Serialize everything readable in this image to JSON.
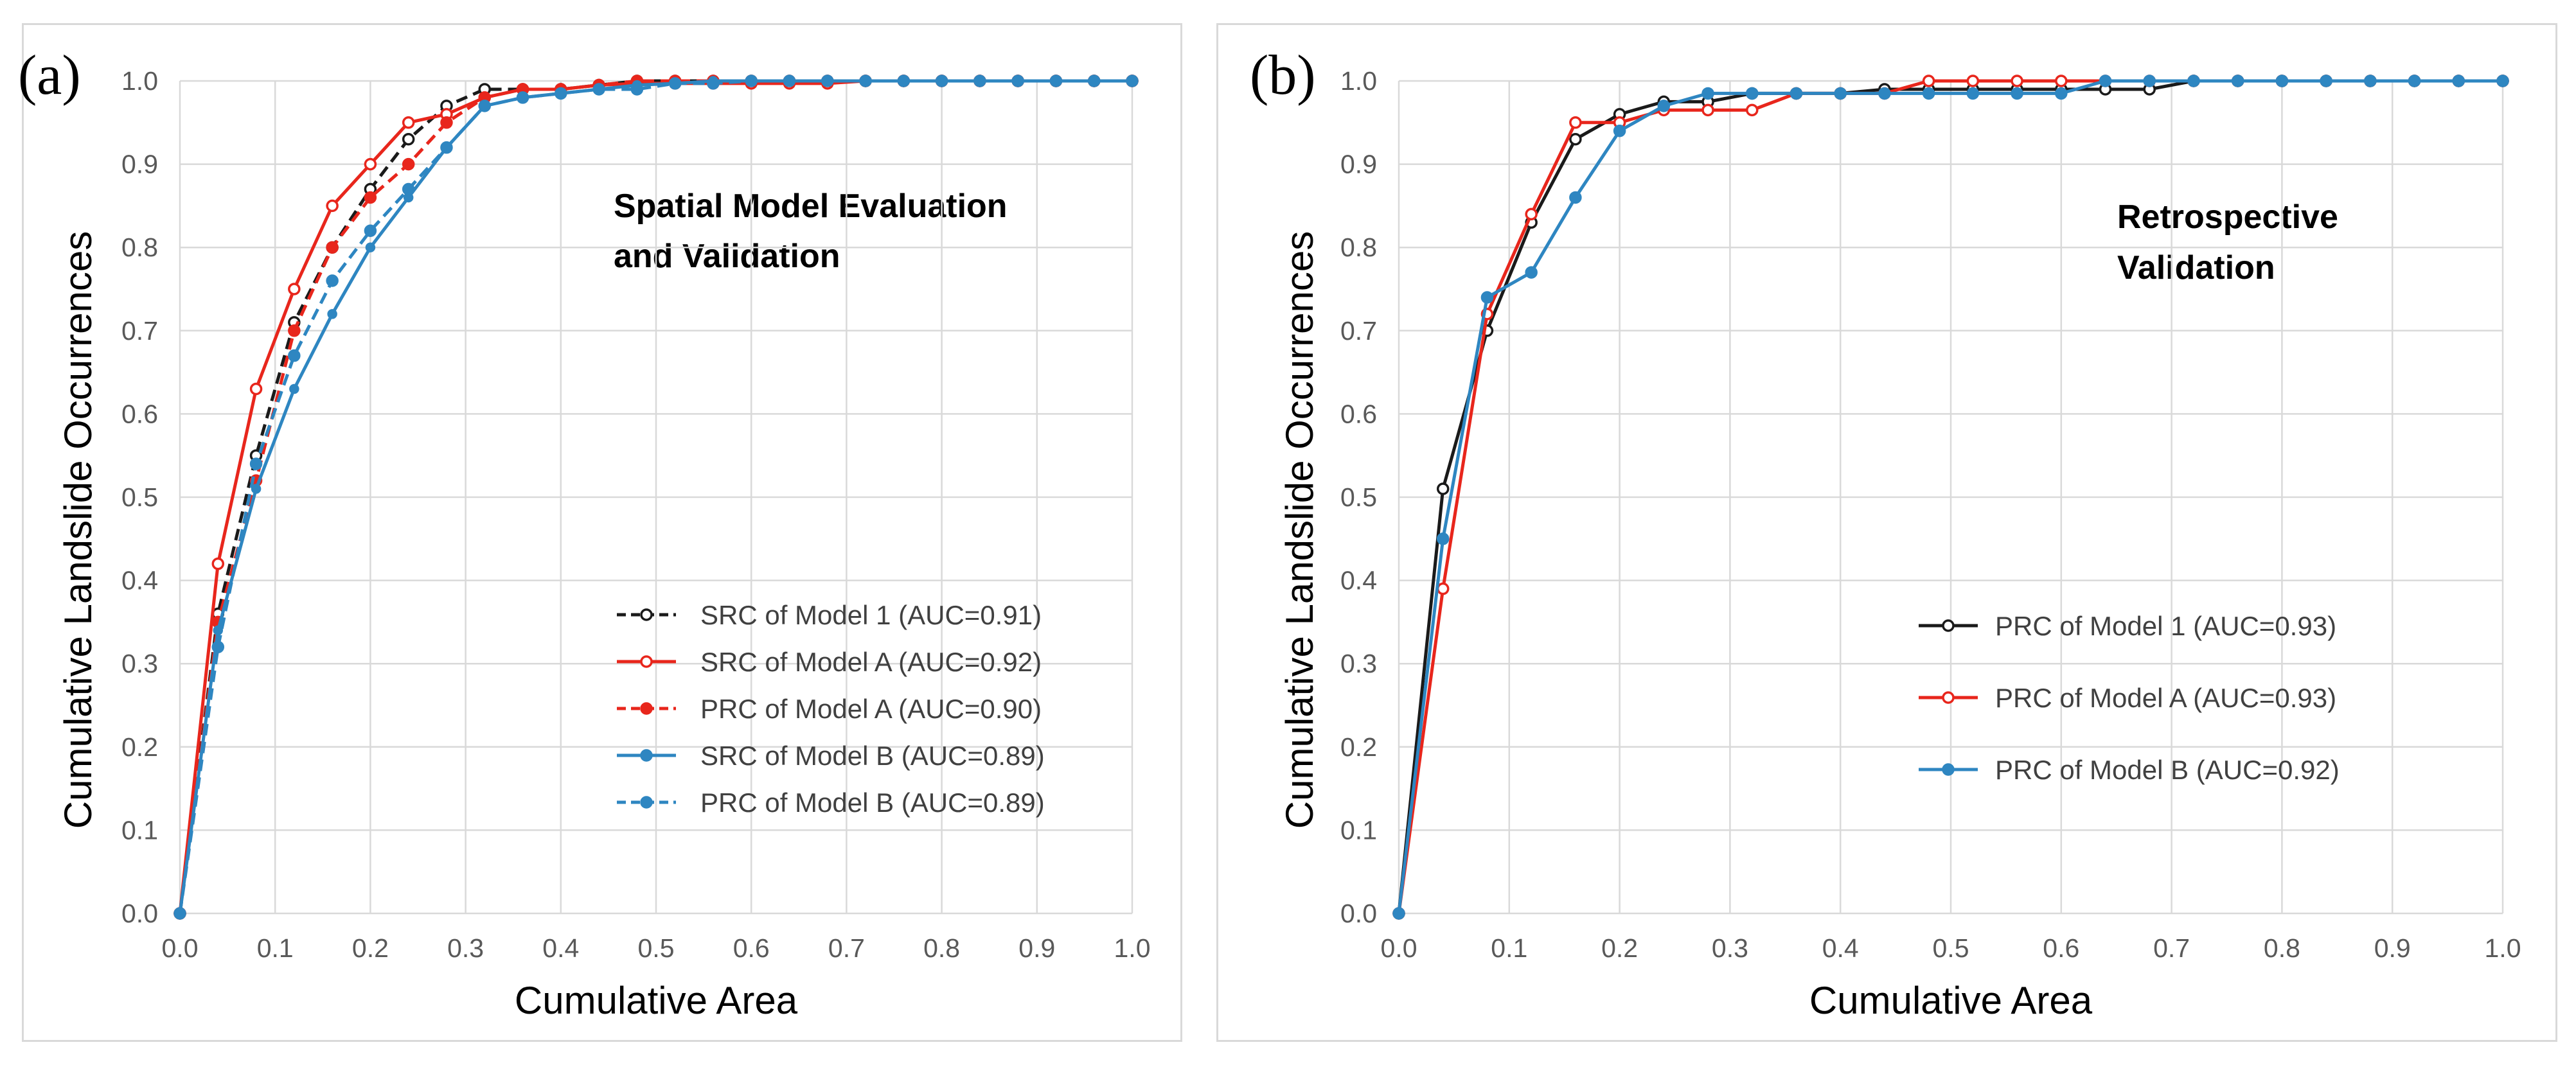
{
  "chart_data": [
    {
      "type": "line",
      "panel_label": "(a)",
      "title": "",
      "annotation": [
        "Spatial Model Evaluation",
        "and Validation"
      ],
      "xlabel": "Cumulative Area",
      "ylabel": "Cumulative Landslide Occurrences",
      "xlim": [
        0,
        1
      ],
      "ylim": [
        0,
        1
      ],
      "xticks": [
        "0.0",
        "0.1",
        "0.2",
        "0.3",
        "0.4",
        "0.5",
        "0.6",
        "0.7",
        "0.8",
        "0.9",
        "1.0"
      ],
      "yticks": [
        "0.0",
        "0.1",
        "0.2",
        "0.3",
        "0.4",
        "0.5",
        "0.6",
        "0.7",
        "0.8",
        "0.9",
        "1.0"
      ],
      "grid": true,
      "legend_position": "bottom-right",
      "series": [
        {
          "name": "SRC of Model 1 (AUC=0.91)",
          "color": "#1a1a1a",
          "dash": "dashed",
          "marker": "open",
          "x": [
            0,
            0.04,
            0.08,
            0.12,
            0.16,
            0.2,
            0.24,
            0.28,
            0.32,
            0.36,
            0.4,
            0.44,
            0.48,
            0.52,
            0.56,
            0.6,
            0.64,
            0.68,
            0.72,
            0.76,
            0.8,
            0.84,
            0.88,
            0.92,
            0.96,
            1.0
          ],
          "y": [
            0,
            0.36,
            0.55,
            0.71,
            0.8,
            0.87,
            0.93,
            0.97,
            0.99,
            0.99,
            0.99,
            0.995,
            1.0,
            1.0,
            1.0,
            1.0,
            1.0,
            1.0,
            1.0,
            1.0,
            1.0,
            1.0,
            1.0,
            1.0,
            1.0,
            1.0
          ]
        },
        {
          "name": "SRC of Model A (AUC=0.92)",
          "color": "#e8261c",
          "dash": "solid",
          "marker": "open",
          "x": [
            0,
            0.04,
            0.08,
            0.12,
            0.16,
            0.2,
            0.24,
            0.28,
            0.32,
            0.36,
            0.4,
            0.44,
            0.48,
            0.52,
            0.56,
            0.6,
            0.64,
            0.68,
            0.72,
            0.76,
            0.8,
            0.84,
            0.88,
            0.92,
            0.96,
            1.0
          ],
          "y": [
            0,
            0.42,
            0.63,
            0.75,
            0.85,
            0.9,
            0.95,
            0.96,
            0.98,
            0.99,
            0.99,
            0.995,
            0.997,
            0.997,
            0.997,
            0.997,
            0.997,
            0.997,
            1.0,
            1.0,
            1.0,
            1.0,
            1.0,
            1.0,
            1.0,
            1.0
          ]
        },
        {
          "name": "PRC of Model A (AUC=0.90)",
          "color": "#e8261c",
          "dash": "dashed",
          "marker": "filled",
          "x": [
            0,
            0.04,
            0.08,
            0.12,
            0.16,
            0.2,
            0.24,
            0.28,
            0.32,
            0.36,
            0.4,
            0.44,
            0.48,
            0.52,
            0.56,
            0.6,
            0.64,
            0.68,
            0.72,
            0.76,
            0.8,
            0.84,
            0.88,
            0.92,
            0.96,
            1.0
          ],
          "y": [
            0,
            0.35,
            0.52,
            0.7,
            0.8,
            0.86,
            0.9,
            0.95,
            0.98,
            0.99,
            0.99,
            0.995,
            1.0,
            1.0,
            1.0,
            1.0,
            1.0,
            1.0,
            1.0,
            1.0,
            1.0,
            1.0,
            1.0,
            1.0,
            1.0,
            1.0
          ]
        },
        {
          "name": "SRC of Model B (AUC=0.89)",
          "color": "#2e86c1",
          "dash": "solid",
          "marker": "small",
          "x": [
            0,
            0.04,
            0.08,
            0.12,
            0.16,
            0.2,
            0.24,
            0.28,
            0.32,
            0.36,
            0.4,
            0.44,
            0.48,
            0.52,
            0.56,
            0.6,
            0.64,
            0.68,
            0.72,
            0.76,
            0.8,
            0.84,
            0.88,
            0.92,
            0.96,
            1.0
          ],
          "y": [
            0,
            0.34,
            0.51,
            0.63,
            0.72,
            0.8,
            0.86,
            0.92,
            0.97,
            0.98,
            0.985,
            0.99,
            0.995,
            0.997,
            1.0,
            1.0,
            1.0,
            1.0,
            1.0,
            1.0,
            1.0,
            1.0,
            1.0,
            1.0,
            1.0,
            1.0
          ]
        },
        {
          "name": "PRC of Model B (AUC=0.89)",
          "color": "#2e86c1",
          "dash": "dashed",
          "marker": "filled",
          "x": [
            0,
            0.04,
            0.08,
            0.12,
            0.16,
            0.2,
            0.24,
            0.28,
            0.32,
            0.36,
            0.4,
            0.44,
            0.48,
            0.52,
            0.56,
            0.6,
            0.64,
            0.68,
            0.72,
            0.76,
            0.8,
            0.84,
            0.88,
            0.92,
            0.96,
            1.0
          ],
          "y": [
            0,
            0.32,
            0.54,
            0.67,
            0.76,
            0.82,
            0.87,
            0.92,
            0.97,
            0.98,
            0.985,
            0.99,
            0.99,
            0.997,
            0.997,
            1.0,
            1.0,
            1.0,
            1.0,
            1.0,
            1.0,
            1.0,
            1.0,
            1.0,
            1.0,
            1.0
          ]
        }
      ]
    },
    {
      "type": "line",
      "panel_label": "(b)",
      "title": "",
      "annotation": [
        "Retrospective",
        "Validation"
      ],
      "xlabel": "Cumulative Area",
      "ylabel": "Cumulative Landslide Occurrences",
      "xlim": [
        0,
        1
      ],
      "ylim": [
        0,
        1
      ],
      "xticks": [
        "0.0",
        "0.1",
        "0.2",
        "0.3",
        "0.4",
        "0.5",
        "0.6",
        "0.7",
        "0.8",
        "0.9",
        "1.0"
      ],
      "yticks": [
        "0.0",
        "0.1",
        "0.2",
        "0.3",
        "0.4",
        "0.5",
        "0.6",
        "0.7",
        "0.8",
        "0.9",
        "1.0"
      ],
      "grid": true,
      "legend_position": "bottom-right",
      "series": [
        {
          "name": "PRC of Model 1 (AUC=0.93)",
          "color": "#1a1a1a",
          "dash": "solid",
          "marker": "open",
          "x": [
            0,
            0.04,
            0.08,
            0.12,
            0.16,
            0.2,
            0.24,
            0.28,
            0.32,
            0.36,
            0.4,
            0.44,
            0.48,
            0.52,
            0.56,
            0.6,
            0.64,
            0.68,
            0.72,
            0.76,
            0.8,
            0.84,
            0.88,
            0.92,
            0.96,
            1.0
          ],
          "y": [
            0,
            0.51,
            0.7,
            0.83,
            0.93,
            0.96,
            0.975,
            0.975,
            0.985,
            0.985,
            0.985,
            0.99,
            0.99,
            0.99,
            0.99,
            0.99,
            0.99,
            0.99,
            1.0,
            1.0,
            1.0,
            1.0,
            1.0,
            1.0,
            1.0,
            1.0
          ]
        },
        {
          "name": "PRC of Model A (AUC=0.93)",
          "color": "#e8261c",
          "dash": "solid",
          "marker": "open",
          "x": [
            0,
            0.04,
            0.08,
            0.12,
            0.16,
            0.2,
            0.24,
            0.28,
            0.32,
            0.36,
            0.4,
            0.44,
            0.48,
            0.52,
            0.56,
            0.6,
            0.64,
            0.68,
            0.72,
            0.76,
            0.8,
            0.84,
            0.88,
            0.92,
            0.96,
            1.0
          ],
          "y": [
            0,
            0.39,
            0.72,
            0.84,
            0.95,
            0.95,
            0.965,
            0.965,
            0.965,
            0.985,
            0.985,
            0.985,
            1.0,
            1.0,
            1.0,
            1.0,
            1.0,
            1.0,
            1.0,
            1.0,
            1.0,
            1.0,
            1.0,
            1.0,
            1.0,
            1.0
          ]
        },
        {
          "name": "PRC of Model B (AUC=0.92)",
          "color": "#2e86c1",
          "dash": "solid",
          "marker": "filled",
          "x": [
            0,
            0.04,
            0.08,
            0.12,
            0.16,
            0.2,
            0.24,
            0.28,
            0.32,
            0.36,
            0.4,
            0.44,
            0.48,
            0.52,
            0.56,
            0.6,
            0.64,
            0.68,
            0.72,
            0.76,
            0.8,
            0.84,
            0.88,
            0.92,
            0.96,
            1.0
          ],
          "y": [
            0,
            0.45,
            0.74,
            0.77,
            0.86,
            0.94,
            0.97,
            0.985,
            0.985,
            0.985,
            0.985,
            0.985,
            0.985,
            0.985,
            0.985,
            0.985,
            1.0,
            1.0,
            1.0,
            1.0,
            1.0,
            1.0,
            1.0,
            1.0,
            1.0,
            1.0
          ]
        }
      ]
    }
  ]
}
